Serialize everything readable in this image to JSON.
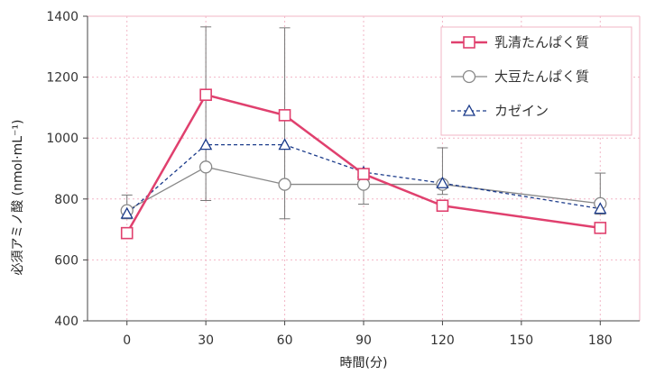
{
  "chart_data": {
    "type": "line",
    "xlabel": "時間(分)",
    "ylabel": "必須アミノ酸 (nmol·mL⁻¹)",
    "xlim": [
      -15,
      195
    ],
    "ylim": [
      400,
      1400
    ],
    "xticks": [
      0,
      30,
      60,
      90,
      120,
      150,
      180
    ],
    "yticks": [
      400,
      600,
      800,
      1000,
      1200,
      1400
    ],
    "grid": true,
    "legend_position": "top-right",
    "x": [
      0,
      30,
      60,
      90,
      120,
      180
    ],
    "series": [
      {
        "name": "乳清たんぱく質",
        "values": [
          688,
          1142,
          1075,
          882,
          778,
          705
        ],
        "color": "#e0406e",
        "marker": "square",
        "line_style": "solid"
      },
      {
        "name": "大豆たんぱく質",
        "values": [
          762,
          905,
          848,
          848,
          848,
          785
        ],
        "error_upper": [
          813,
          1365,
          1362,
          888,
          968,
          885
        ],
        "error_lower": [
          735,
          795,
          735,
          783,
          815,
          750
        ],
        "color": "#888888",
        "marker": "circle",
        "line_style": "solid"
      },
      {
        "name": "カゼイン",
        "values": [
          752,
          978,
          978,
          888,
          852,
          768
        ],
        "color": "#1a3a8a",
        "marker": "triangle",
        "line_style": "dashed"
      }
    ]
  }
}
